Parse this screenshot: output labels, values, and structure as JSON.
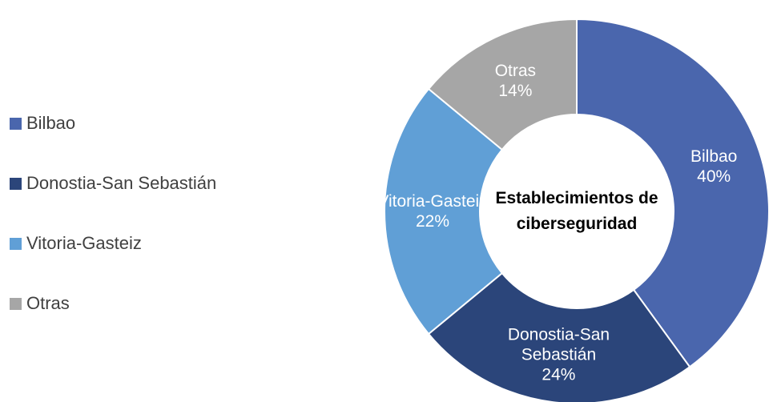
{
  "chart_data": {
    "type": "donut",
    "title": "Establecimientos de ciberseguridad",
    "categories": [
      "Bilbao",
      "Donostia-San Sebastián",
      "Vitoria-Gasteiz",
      "Otras"
    ],
    "values": [
      40,
      24,
      22,
      14
    ],
    "value_labels": [
      "40%",
      "24%",
      "22%",
      "14%"
    ],
    "colors": [
      "#4a66ad",
      "#2b457a",
      "#609fd6",
      "#a6a6a6"
    ],
    "legend": "left"
  }
}
